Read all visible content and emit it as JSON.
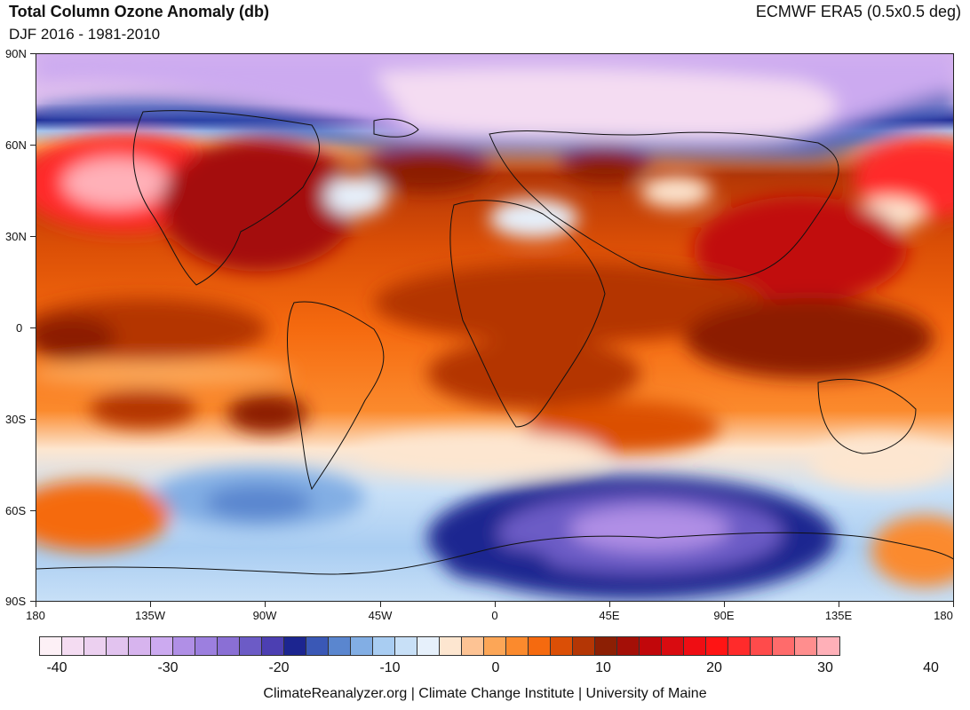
{
  "header": {
    "title": "Total Column Ozone Anomaly (db)",
    "subtitle": "DJF 2016 - 1981-2010",
    "source": "ECMWF ERA5 (0.5x0.5 deg)"
  },
  "axes": {
    "lat_labels": [
      "90N",
      "60N",
      "30N",
      "0",
      "30S",
      "60S",
      "90S"
    ],
    "lon_labels": [
      "180",
      "135W",
      "90W",
      "45W",
      "0",
      "45E",
      "90E",
      "135E",
      "180"
    ]
  },
  "colorbar": {
    "colors": [
      "#fdf0f6",
      "#f4dcf2",
      "#ecd0f0",
      "#e2c3ef",
      "#d7b4ee",
      "#ccaaf0",
      "#b08fe6",
      "#9c7fdf",
      "#8a6fd5",
      "#6c5bc6",
      "#4c3fb2",
      "#1c2590",
      "#3a58b6",
      "#5a86cf",
      "#82aee4",
      "#a9cdf2",
      "#c8e0f7",
      "#e6f0fb",
      "#fde6d0",
      "#fdc394",
      "#fca657",
      "#fb8a2d",
      "#f56a0f",
      "#db4f06",
      "#b43605",
      "#8c1f04",
      "#a40f07",
      "#c1070a",
      "#d90b10",
      "#ef0d13",
      "#ff1414",
      "#ff2b2b",
      "#ff4b4b",
      "#ff6b6b",
      "#ff8e8e",
      "#ffb0b8"
    ],
    "labels": [
      "-40",
      "-30",
      "-20",
      "-10",
      "0",
      "10",
      "20",
      "30",
      "40"
    ]
  },
  "footer": "ClimateReanalyzer.org | Climate Change Institute | University of Maine"
}
